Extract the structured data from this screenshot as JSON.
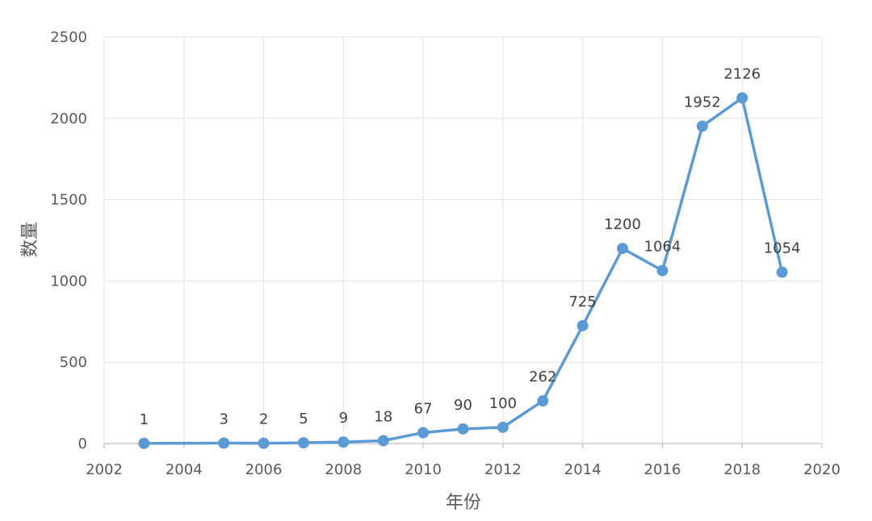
{
  "chart_data": {
    "type": "line",
    "title": "",
    "xlabel": "年份",
    "ylabel": "数量",
    "xlim": [
      2002,
      2020
    ],
    "ylim": [
      0,
      2500
    ],
    "xticks": [
      "2002",
      "2004",
      "2006",
      "2008",
      "2010",
      "2012",
      "2014",
      "2016",
      "2018",
      "2020"
    ],
    "yticks": [
      "0",
      "500",
      "1000",
      "1500",
      "2000",
      "2500"
    ],
    "grid": true,
    "legend": "none",
    "color": "#5B9BD5",
    "series": [
      {
        "x": [
          2003,
          2005,
          2006,
          2007,
          2008,
          2009,
          2010,
          2011,
          2012,
          2013,
          2014,
          2015,
          2016,
          2017,
          2018,
          2019
        ],
        "y": [
          1,
          3,
          2,
          5,
          9,
          18,
          67,
          90,
          100,
          262,
          725,
          1200,
          1064,
          1952,
          2126,
          1054
        ],
        "labels": [
          "1",
          "3",
          "2",
          "5",
          "9",
          "18",
          "67",
          "90",
          "100",
          "262",
          "725",
          "1200",
          "1064",
          "1952",
          "2126",
          "1054"
        ]
      }
    ]
  }
}
